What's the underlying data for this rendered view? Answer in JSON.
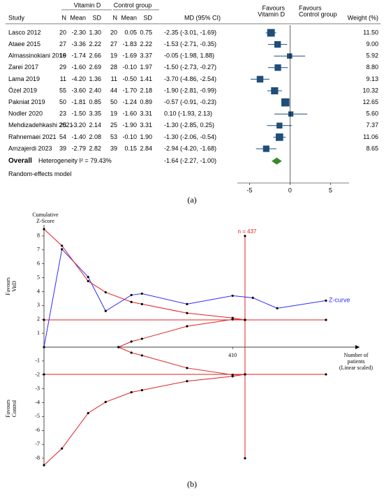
{
  "chart_data": [
    {
      "type": "forest",
      "group_headers": [
        "Vitamin D",
        "Control group"
      ],
      "columns": [
        "Study",
        "N",
        "Mean",
        "SD",
        "N",
        "Mean",
        "SD",
        "MD (95% CI)",
        "Weight (%)"
      ],
      "favours": [
        [
          "Favours",
          "Vitamin D"
        ],
        [
          "Favours",
          "Control group"
        ]
      ],
      "rows": [
        {
          "study": "Lasco 2012",
          "n1": "20",
          "mean1": "-2.30",
          "sd1": "1.30",
          "n2": "20",
          "mean2": "0.05",
          "sd2": "0.75",
          "md": -2.35,
          "ci": [
            -3.01,
            -1.69
          ],
          "md_label": "-2.35 (-3.01, -1.69)",
          "weight": 11.5,
          "weight_label": "11.50"
        },
        {
          "study": "Ataee 2015",
          "n1": "27",
          "mean1": "-3.36",
          "sd1": "2.22",
          "n2": "27",
          "mean2": "-1.83",
          "sd2": "2.22",
          "md": -1.53,
          "ci": [
            -2.71,
            -0.35
          ],
          "md_label": "-1.53 (-2.71, -0.35)",
          "weight": 9.0,
          "weight_label": "9.00"
        },
        {
          "study": "Almassinokiani 2016",
          "n1": "19",
          "mean1": "-1.74",
          "sd1": "2.66",
          "n2": "19",
          "mean2": "-1.69",
          "sd2": "3.37",
          "md": -0.05,
          "ci": [
            -1.98,
            1.88
          ],
          "md_label": "-0.05 (-1.98,  1.88)",
          "weight": 5.92,
          "weight_label": "5.92"
        },
        {
          "study": "Zarei 2017",
          "n1": "29",
          "mean1": "-1.60",
          "sd1": "2.69",
          "n2": "28",
          "mean2": "-0.10",
          "sd2": "1.97",
          "md": -1.5,
          "ci": [
            -2.73,
            -0.27
          ],
          "md_label": "-1.50 (-2.73, -0.27)",
          "weight": 8.8,
          "weight_label": "8.80"
        },
        {
          "study": "Lama 2019",
          "n1": "11",
          "mean1": "-4.20",
          "sd1": "1.36",
          "n2": "11",
          "mean2": "-0.50",
          "sd2": "1.41",
          "md": -3.7,
          "ci": [
            -4.86,
            -2.54
          ],
          "md_label": "-3.70 (-4.86, -2.54)",
          "weight": 9.13,
          "weight_label": "9.13"
        },
        {
          "study": "Özel 2019",
          "n1": "55",
          "mean1": "-3.60",
          "sd1": "2.40",
          "n2": "44",
          "mean2": "-1.70",
          "sd2": "2.18",
          "md": -1.9,
          "ci": [
            -2.81,
            -0.99
          ],
          "md_label": "-1.90 (-2.81, -0.99)",
          "weight": 10.32,
          "weight_label": "10.32"
        },
        {
          "study": "Pakniat 2019",
          "n1": "50",
          "mean1": "-1.81",
          "sd1": "0.85",
          "n2": "50",
          "mean2": "-1.24",
          "sd2": "0.89",
          "md": -0.57,
          "ci": [
            -0.91,
            -0.23
          ],
          "md_label": "-0.57 (-0.91, -0.23)",
          "weight": 12.65,
          "weight_label": "12.65"
        },
        {
          "study": "Nodler 2020",
          "n1": "23",
          "mean1": "-1.50",
          "sd1": "3.35",
          "n2": "19",
          "mean2": "-1.60",
          "sd2": "3.31",
          "md": 0.1,
          "ci": [
            -1.93,
            2.13
          ],
          "md_label": "0.10 (-1.93,  2.13)",
          "weight": 5.6,
          "weight_label": "5.60"
        },
        {
          "study": "Mehdizadehkashi 2021",
          "n1": "25",
          "mean1": "-3.20",
          "sd1": "2.14",
          "n2": "25",
          "mean2": "-1.90",
          "sd2": "3.31",
          "md": -1.3,
          "ci": [
            -2.85,
            0.25
          ],
          "md_label": "-1.30 (-2.85,  0.25)",
          "weight": 7.37,
          "weight_label": "7.37"
        },
        {
          "study": "Rahnemaei 2021",
          "n1": "54",
          "mean1": "-1.40",
          "sd1": "2.08",
          "n2": "53",
          "mean2": "-0.10",
          "sd2": "1.90",
          "md": -1.3,
          "ci": [
            -2.06,
            -0.54
          ],
          "md_label": "-1.30 (-2.06, -0.54)",
          "weight": 11.06,
          "weight_label": "11.06"
        },
        {
          "study": "Amzajerdi 2023",
          "n1": "39",
          "mean1": "-2.79",
          "sd1": "2.82",
          "n2": "39",
          "mean2": "0.15",
          "sd2": "2.84",
          "md": -2.94,
          "ci": [
            -4.2,
            -1.68
          ],
          "md_label": "-2.94 (-4.20, -1.68)",
          "weight": 8.65,
          "weight_label": "8.65"
        }
      ],
      "overall": {
        "label": "Overall",
        "heterogeneity": "Heterogeneity I² = 79.43%",
        "md": -1.64,
        "ci": [
          -2.27,
          -1.0
        ],
        "md_label": "-1.64 (-2.27, -1.00)"
      },
      "model": "Random-effects model",
      "xlim": [
        -6.5,
        7.3
      ],
      "xticks": [
        -5,
        0,
        5
      ],
      "square_color": "#1f4e79",
      "diamond_color": "#3a8a2a",
      "caption": "(a)"
    },
    {
      "type": "line",
      "ylabel": [
        "Cumulative",
        "Z-Score"
      ],
      "xlabel": [
        "Number of",
        "patients",
        "(Linear scaled)"
      ],
      "side_labels": [
        [
          "Favours",
          "VitD"
        ],
        [
          "Favours",
          "Control"
        ]
      ],
      "xlim": [
        0,
        686
      ],
      "xticks": [
        410
      ],
      "ylim": [
        -8.6,
        8.8
      ],
      "yticks": [
        8,
        7,
        6,
        5,
        4,
        3,
        2,
        1,
        -1,
        -2,
        -3,
        -4,
        -5,
        -6,
        -7,
        -8
      ],
      "ris": {
        "value": 437,
        "label": "n = 437"
      },
      "series": [
        {
          "name": "Z-curve",
          "color": "#2c2cff",
          "x": [
            0,
            39,
            96,
            134,
            190,
            213,
            311,
            410,
            454,
            507,
            613
          ],
          "values": [
            0,
            7.05,
            5.05,
            2.6,
            3.75,
            3.85,
            3.1,
            3.7,
            3.55,
            2.8,
            3.35
          ]
        },
        {
          "color": "#e02020",
          "x": [
            0,
            39,
            96,
            134,
            190,
            213,
            311,
            410,
            437
          ],
          "values": [
            8.5,
            7.3,
            4.75,
            3.95,
            3.25,
            3.1,
            2.45,
            2.1,
            1.96
          ]
        },
        {
          "color": "#e02020",
          "x": [
            0,
            39,
            96,
            134,
            190,
            213,
            311,
            410,
            437
          ],
          "values": [
            -8.5,
            -7.3,
            -4.75,
            -3.95,
            -3.25,
            -3.1,
            -2.45,
            -2.1,
            -1.96
          ]
        },
        {
          "color": "#e02020",
          "x": [
            0,
            437,
            613
          ],
          "values": [
            1.96,
            1.96,
            1.96
          ]
        },
        {
          "color": "#e02020",
          "x": [
            0,
            437,
            613
          ],
          "values": [
            -1.96,
            -1.96,
            -1.96
          ]
        },
        {
          "color": "#e02020",
          "x": [
            162,
            190,
            213,
            311,
            410,
            437
          ],
          "values": [
            0,
            0.4,
            0.6,
            1.5,
            2.0,
            1.96
          ]
        },
        {
          "color": "#e02020",
          "x": [
            162,
            190,
            213,
            311,
            410,
            437
          ],
          "values": [
            0,
            -0.4,
            -0.6,
            -1.5,
            -2.0,
            -1.96
          ]
        }
      ],
      "caption": "(b)"
    }
  ]
}
